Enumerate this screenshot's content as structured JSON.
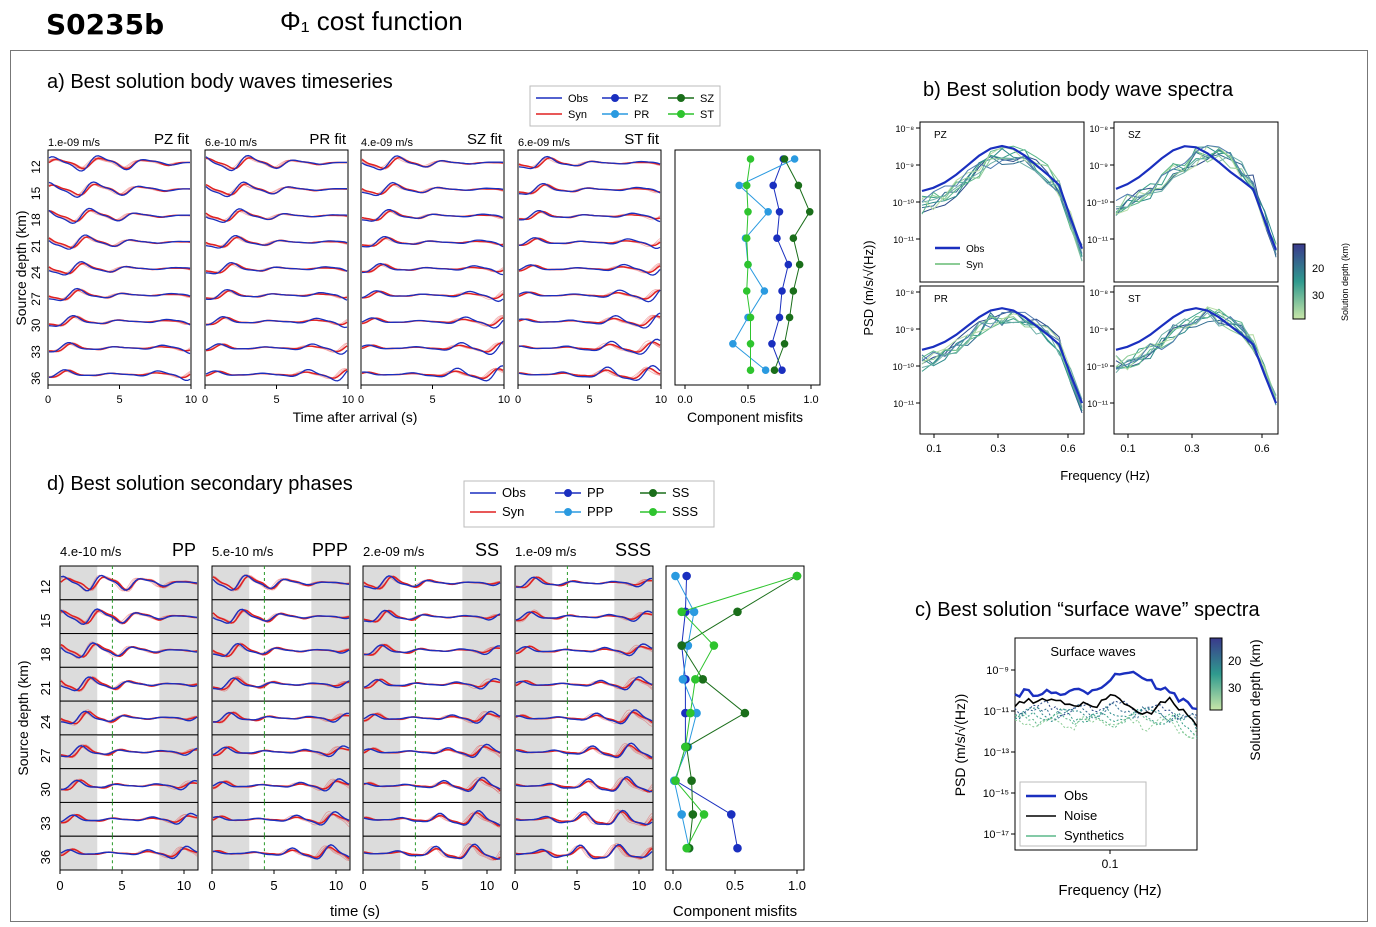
{
  "page": {
    "title": "S0235b",
    "subtitle": "Φ₁ cost function"
  },
  "colors": {
    "obs": "#1a2fbf",
    "syn": "#e02020",
    "pz": "#1a2fbf",
    "pr": "#2a9ae0",
    "sz": "#1a6e1a",
    "st": "#2ec42e",
    "noise": "#000000"
  },
  "panel_a": {
    "heading": "a) Best solution body waves timeseries",
    "ylabel": "Source depth (km)",
    "xlabel": "Time after arrival (s)",
    "depths": [
      "12",
      "15",
      "18",
      "21",
      "24",
      "27",
      "30",
      "33",
      "36"
    ],
    "xticks": [
      "0",
      "5",
      "10"
    ],
    "legend": {
      "obs": "Obs",
      "syn": "Syn",
      "c1": "PZ",
      "c2": "PR",
      "c3": "SZ",
      "c4": "ST"
    },
    "subplots": [
      {
        "label": "PZ fit",
        "scale": "1.e-09 m/s"
      },
      {
        "label": "PR fit",
        "scale": "6.e-10 m/s"
      },
      {
        "label": "SZ fit",
        "scale": "4.e-09 m/s"
      },
      {
        "label": "ST fit",
        "scale": "6.e-09 m/s"
      }
    ],
    "misfit_xlabel": "Component misfits",
    "misfit_xticks": [
      "0.0",
      "0.5",
      "1.0"
    ]
  },
  "panel_b": {
    "heading": "b) Best solution body wave spectra",
    "ylabel": "PSD (m/s/√(Hz))",
    "xlabel": "Frequency (Hz)",
    "xticks": [
      "0.1",
      "0.3",
      "0.6"
    ],
    "colorbar_label": "Solution depth (km)",
    "colorbar_ticks": [
      "20",
      "30"
    ],
    "legend": {
      "obs": "Obs",
      "syn": "Syn"
    },
    "subplots": [
      {
        "label": "PZ",
        "yticks": [
          "10⁻⁸",
          "10⁻⁹",
          "10⁻¹⁰",
          "10⁻¹¹"
        ]
      },
      {
        "label": "SZ",
        "yticks": [
          "10⁻⁸",
          "10⁻⁹",
          "10⁻¹⁰",
          "10⁻¹¹"
        ]
      },
      {
        "label": "PR",
        "yticks": [
          "10⁻⁸",
          "10⁻⁹",
          "10⁻¹⁰",
          "10⁻¹¹"
        ]
      },
      {
        "label": "ST",
        "yticks": [
          "10⁻⁸",
          "10⁻⁹",
          "10⁻¹⁰",
          "10⁻¹¹"
        ]
      }
    ]
  },
  "panel_c": {
    "heading": "c) Best solution “surface wave” spectra",
    "inner_title": "Surface waves",
    "ylabel": "PSD (m/s/√(Hz))",
    "xlabel": "Frequency (Hz)",
    "xticks": [
      "0.1"
    ],
    "yticks": [
      "10⁻⁹",
      "10⁻¹¹",
      "10⁻¹³",
      "10⁻¹⁵",
      "10⁻¹⁷"
    ],
    "colorbar_label": "Solution depth (km)",
    "colorbar_ticks": [
      "20",
      "30"
    ],
    "legend": {
      "obs": "Obs",
      "noise": "Noise",
      "syn": "Synthetics"
    }
  },
  "panel_d": {
    "heading": "d) Best solution secondary phases",
    "ylabel": "Source depth (km)",
    "xlabel": "time (s)",
    "depths": [
      "12",
      "15",
      "18",
      "21",
      "24",
      "27",
      "30",
      "33",
      "36"
    ],
    "xticks": [
      "0",
      "5",
      "10"
    ],
    "legend": {
      "obs": "Obs",
      "syn": "Syn",
      "c1": "PP",
      "c2": "PPP",
      "c3": "SS",
      "c4": "SSS"
    },
    "subplots": [
      {
        "label": "PP",
        "scale": "4.e-10 m/s"
      },
      {
        "label": "PPP",
        "scale": "5.e-10 m/s"
      },
      {
        "label": "SS",
        "scale": "2.e-09 m/s"
      },
      {
        "label": "SSS",
        "scale": "1.e-09 m/s"
      }
    ],
    "misfit_xlabel": "Component misfits",
    "misfit_xticks": [
      "0.0",
      "0.5",
      "1.0"
    ]
  },
  "chart_data": [
    {
      "type": "line",
      "title": "a) Best solution body waves timeseries (component misfits)",
      "xlabel": "Component misfits",
      "ylabel": "Source depth (km)",
      "x_range": [
        0.0,
        1.0
      ],
      "y": [
        12,
        15,
        18,
        21,
        24,
        27,
        30,
        33,
        36
      ],
      "series": [
        {
          "name": "PZ",
          "values": [
            0.78,
            0.7,
            0.75,
            0.73,
            0.82,
            0.77,
            0.75,
            0.69,
            0.77
          ]
        },
        {
          "name": "PR",
          "values": [
            0.87,
            0.43,
            0.66,
            0.48,
            0.5,
            0.63,
            0.5,
            0.38,
            0.64
          ]
        },
        {
          "name": "SZ",
          "values": [
            0.79,
            0.9,
            0.99,
            0.86,
            0.91,
            0.86,
            0.83,
            0.79,
            0.71
          ]
        },
        {
          "name": "ST",
          "values": [
            0.52,
            0.49,
            0.5,
            0.49,
            0.5,
            0.49,
            0.52,
            0.52,
            0.52
          ]
        }
      ]
    },
    {
      "type": "line",
      "title": "d) Best solution secondary phases (component misfits)",
      "xlabel": "Component misfits",
      "ylabel": "Source depth (km)",
      "x_range": [
        0.0,
        1.0
      ],
      "y": [
        12,
        15,
        18,
        21,
        24,
        27,
        30,
        33,
        36
      ],
      "series": [
        {
          "name": "PP",
          "values": [
            0.11,
            0.1,
            0.07,
            0.1,
            0.1,
            0.1,
            0.02,
            0.47,
            0.52
          ]
        },
        {
          "name": "PPP",
          "values": [
            0.02,
            0.17,
            0.12,
            0.08,
            0.19,
            0.12,
            0.01,
            0.07,
            0.13
          ]
        },
        {
          "name": "SS",
          "values": [
            1.0,
            0.52,
            0.07,
            0.24,
            0.58,
            0.11,
            0.15,
            0.16,
            0.13
          ]
        },
        {
          "name": "SSS",
          "values": [
            1.0,
            0.07,
            0.33,
            0.18,
            0.14,
            0.1,
            0.02,
            0.25,
            0.11
          ]
        }
      ]
    }
  ]
}
